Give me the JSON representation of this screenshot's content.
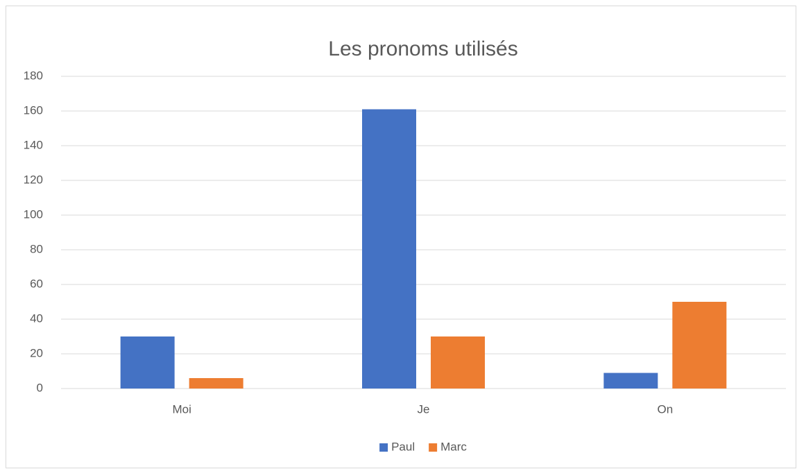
{
  "chart_data": {
    "type": "bar",
    "title": "Les pronoms utilisés",
    "categories": [
      "Moi",
      "Je",
      "On"
    ],
    "series": [
      {
        "name": "Paul",
        "color": "#4472c4",
        "values": [
          30,
          161,
          9
        ]
      },
      {
        "name": "Marc",
        "color": "#ed7d31",
        "values": [
          6,
          30,
          50
        ]
      }
    ],
    "ylim": [
      0,
      180
    ],
    "yticks": [
      0,
      20,
      40,
      60,
      80,
      100,
      120,
      140,
      160,
      180
    ],
    "grid": true,
    "legend": "bottom"
  }
}
